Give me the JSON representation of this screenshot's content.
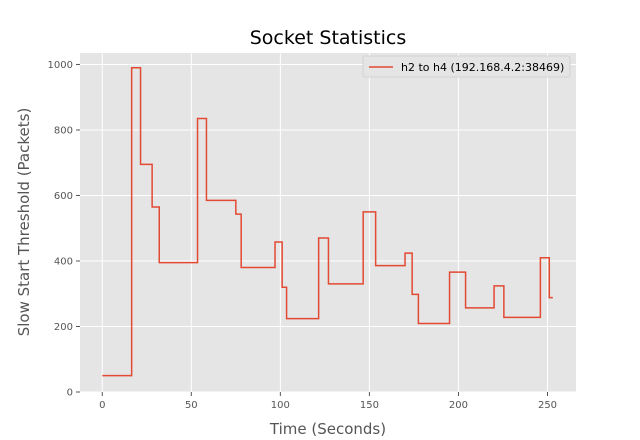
{
  "chart_data": {
    "type": "line",
    "title": "Socket Statistics",
    "xlabel": "Time (Seconds)",
    "ylabel": "Slow Start Threshold (Packets)",
    "xlim": [
      -12.5,
      266
    ],
    "ylim": [
      0,
      1035
    ],
    "xticks": [
      0,
      50,
      100,
      150,
      200,
      250
    ],
    "yticks": [
      0,
      200,
      400,
      600,
      800,
      1000
    ],
    "grid": true,
    "legend_position": "top-right",
    "series": [
      {
        "name": "h2 to h4 (192.168.4.2:38469)",
        "color": "#e24a33",
        "step": true,
        "x": [
          0,
          16.5,
          21.5,
          28,
          32,
          53.5,
          58.5,
          75,
          78,
          97,
          101,
          103.5,
          121.5,
          127,
          146.5,
          153.5,
          170,
          174,
          177.5,
          195,
          204,
          220,
          225.5,
          246,
          251,
          253
        ],
        "y": [
          50,
          990,
          695,
          565,
          395,
          835,
          585,
          543,
          380,
          458,
          320,
          224,
          470,
          330,
          550,
          386,
          424,
          298,
          209,
          366,
          257,
          324,
          228,
          410,
          288,
          288
        ]
      }
    ]
  }
}
